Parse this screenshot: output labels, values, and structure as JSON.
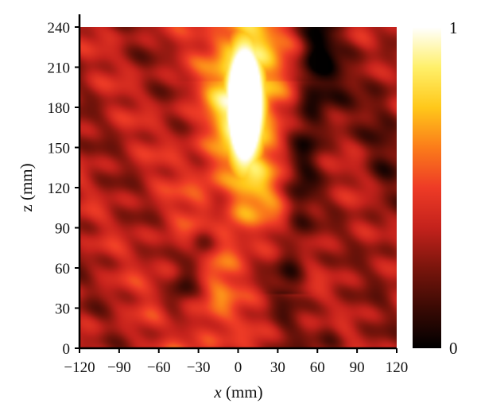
{
  "chart_data": {
    "type": "heatmap",
    "title": "",
    "xlabel": {
      "var": "x",
      "unit": " (mm)"
    },
    "ylabel": "z (mm)",
    "xlim": [
      -120,
      120
    ],
    "ylim": [
      0,
      240
    ],
    "xticks": [
      -120,
      -90,
      -60,
      -30,
      0,
      30,
      60,
      90,
      120
    ],
    "yticks": [
      0,
      30,
      60,
      90,
      120,
      150,
      180,
      210,
      240
    ],
    "xtick_labels": [
      "−120",
      "−90",
      "−60",
      "−30",
      "0",
      "30",
      "60",
      "90",
      "120"
    ],
    "ytick_labels": [
      "0",
      "30",
      "60",
      "90",
      "120",
      "150",
      "180",
      "210",
      "240"
    ],
    "colorbar": {
      "min_label": "0",
      "max_label": "1",
      "range": [
        0,
        1
      ]
    },
    "colormap": [
      "#000000",
      "#3a0a04",
      "#7a150c",
      "#c4221c",
      "#ee3b26",
      "#fb7c1a",
      "#ffc81a",
      "#fff06a",
      "#ffffff"
    ],
    "grid": false,
    "features": [
      {
        "name": "focal spot",
        "x": 5,
        "z": 178,
        "peak_value": 1.0
      }
    ]
  }
}
